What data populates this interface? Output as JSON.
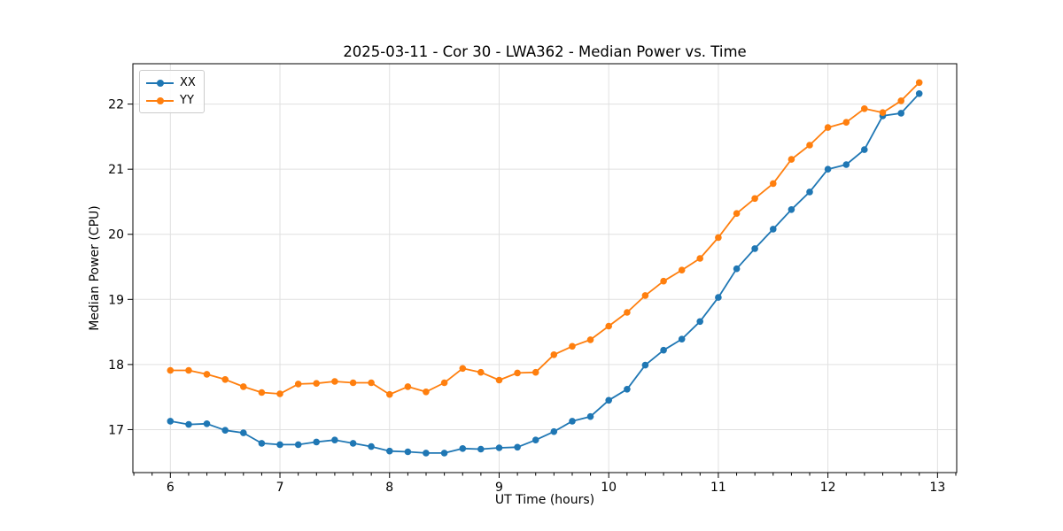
{
  "chart_data": {
    "type": "line",
    "title": "2025-03-11 - Cor 30 - LWA362 - Median Power vs. Time",
    "xlabel": "UT Time (hours)",
    "ylabel": "Median Power (CPU)",
    "xlim": [
      5.658,
      13.175
    ],
    "ylim": [
      16.34,
      22.62
    ],
    "x_ticks": [
      6,
      7,
      8,
      9,
      10,
      11,
      12,
      13
    ],
    "y_ticks": [
      17,
      18,
      19,
      20,
      21,
      22
    ],
    "x_minor_tick_step": 0.16667,
    "grid": true,
    "grid_color": "#e0e0e0",
    "legend_position": "upper left",
    "x": [
      6.0,
      6.167,
      6.333,
      6.5,
      6.667,
      6.833,
      7.0,
      7.167,
      7.333,
      7.5,
      7.667,
      7.833,
      8.0,
      8.167,
      8.333,
      8.5,
      8.667,
      8.833,
      9.0,
      9.167,
      9.333,
      9.5,
      9.667,
      9.833,
      10.0,
      10.167,
      10.333,
      10.5,
      10.667,
      10.833,
      11.0,
      11.167,
      11.333,
      11.5,
      11.667,
      11.833,
      12.0,
      12.167,
      12.333,
      12.5,
      12.667,
      12.833
    ],
    "series": [
      {
        "name": "XX",
        "color": "#1f77b4",
        "marker": "circle",
        "values": [
          17.13,
          17.08,
          17.09,
          16.99,
          16.95,
          16.79,
          16.77,
          16.77,
          16.81,
          16.84,
          16.79,
          16.74,
          16.67,
          16.66,
          16.64,
          16.64,
          16.71,
          16.7,
          16.72,
          16.73,
          16.84,
          16.97,
          17.13,
          17.2,
          17.45,
          17.62,
          17.99,
          18.22,
          18.39,
          18.66,
          19.03,
          19.47,
          19.78,
          20.08,
          20.38,
          20.65,
          21.0,
          21.07,
          21.3,
          21.82,
          21.86,
          22.16
        ]
      },
      {
        "name": "YY",
        "color": "#ff7f0e",
        "marker": "circle",
        "values": [
          17.91,
          17.91,
          17.85,
          17.77,
          17.66,
          17.57,
          17.55,
          17.7,
          17.71,
          17.74,
          17.72,
          17.72,
          17.54,
          17.66,
          17.58,
          17.72,
          17.94,
          17.88,
          17.76,
          17.87,
          17.88,
          18.15,
          18.28,
          18.38,
          18.59,
          18.8,
          19.06,
          19.28,
          19.45,
          19.63,
          19.95,
          20.32,
          20.55,
          20.78,
          21.15,
          21.37,
          21.64,
          21.72,
          21.93,
          21.87,
          22.05,
          22.33
        ]
      }
    ]
  }
}
